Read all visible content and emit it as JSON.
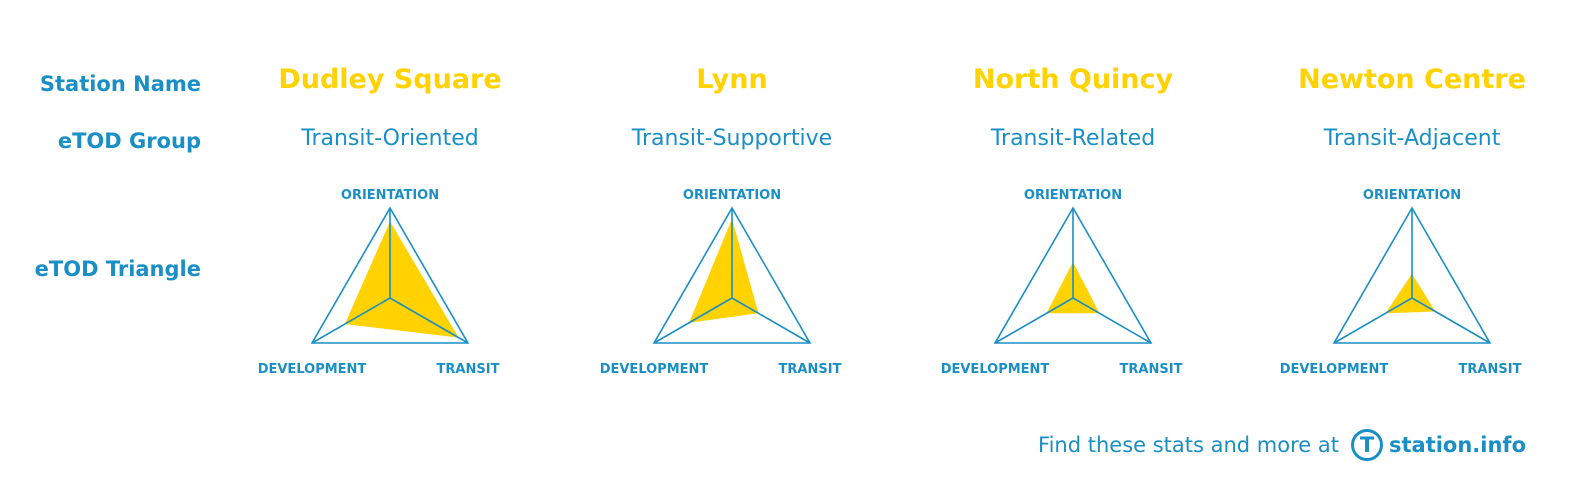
{
  "row_labels": {
    "station_name": "Station Name",
    "etod_group": "eTOD Group",
    "etod_triangle": "eTOD Triangle"
  },
  "colors": {
    "accent_yellow": "#ffd200",
    "accent_blue": "#1a8fc6"
  },
  "chart_data": {
    "type": "radar",
    "axes": [
      "ORIENTATION",
      "TRANSIT",
      "DEVELOPMENT"
    ],
    "scale": [
      0,
      1
    ],
    "stations": [
      {
        "name": "Dudley Square",
        "group": "Transit-Oriented",
        "values": {
          "ORIENTATION": 0.85,
          "TRANSIT": 0.88,
          "DEVELOPMENT": 0.58
        }
      },
      {
        "name": "Lynn",
        "group": "Transit-Supportive",
        "values": {
          "ORIENTATION": 0.88,
          "TRANSIT": 0.34,
          "DEVELOPMENT": 0.55
        }
      },
      {
        "name": "North Quincy",
        "group": "Transit-Related",
        "values": {
          "ORIENTATION": 0.4,
          "TRANSIT": 0.34,
          "DEVELOPMENT": 0.34
        }
      },
      {
        "name": "Newton Centre",
        "group": "Transit-Adjacent",
        "values": {
          "ORIENTATION": 0.27,
          "TRANSIT": 0.3,
          "DEVELOPMENT": 0.34
        }
      }
    ]
  },
  "footer": {
    "text": "Find these stats and more at",
    "logo_letter": "T",
    "link": "station.info"
  }
}
